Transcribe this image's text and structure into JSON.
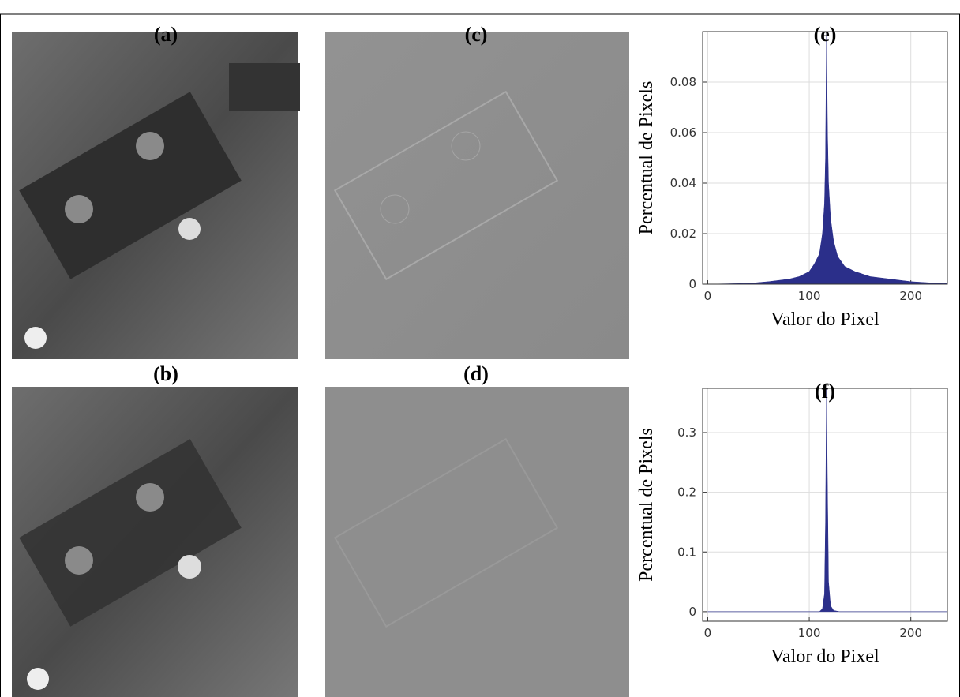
{
  "panels": [
    {
      "label": "(a)"
    },
    {
      "label": "(b)"
    },
    {
      "label": "(c)"
    },
    {
      "label": "(d)"
    }
  ],
  "chart_data": [
    {
      "type": "area",
      "title": "(e)",
      "x_label": "Valor do Pixel",
      "y_label": "Percentual de Pixels",
      "color": "#2b2f8a",
      "grid": true,
      "x": [
        0,
        40,
        60,
        80,
        90,
        100,
        105,
        110,
        113,
        115,
        116,
        117,
        118,
        119,
        121,
        124,
        128,
        135,
        145,
        160,
        180,
        200,
        220,
        236
      ],
      "values": [
        0,
        0.0003,
        0.001,
        0.002,
        0.003,
        0.005,
        0.008,
        0.012,
        0.02,
        0.032,
        0.05,
        0.1,
        0.06,
        0.04,
        0.026,
        0.017,
        0.011,
        0.007,
        0.005,
        0.003,
        0.002,
        0.001,
        0.0005,
        0.0002
      ],
      "xlim": [
        -5,
        236
      ],
      "ylim": [
        0,
        0.1
      ],
      "xticks": [
        0,
        100,
        200
      ],
      "yticks": [
        0,
        0.02,
        0.04,
        0.06,
        0.08
      ]
    },
    {
      "type": "area",
      "title": "(f)",
      "x_label": "Valor do Pixel",
      "y_label": "Percentual de Pixels",
      "color": "#2b2f8a",
      "grid": true,
      "x": [
        0,
        110,
        113,
        115,
        116,
        117,
        118,
        119,
        121,
        124,
        130,
        236
      ],
      "values": [
        0,
        0,
        0.005,
        0.03,
        0.15,
        0.374,
        0.2,
        0.05,
        0.01,
        0.002,
        0,
        0
      ],
      "xlim": [
        -5,
        236
      ],
      "ylim": [
        -0.016,
        0.374
      ],
      "xticks": [
        0,
        100,
        200
      ],
      "yticks": [
        0,
        0.1,
        0.2,
        0.3
      ]
    }
  ]
}
